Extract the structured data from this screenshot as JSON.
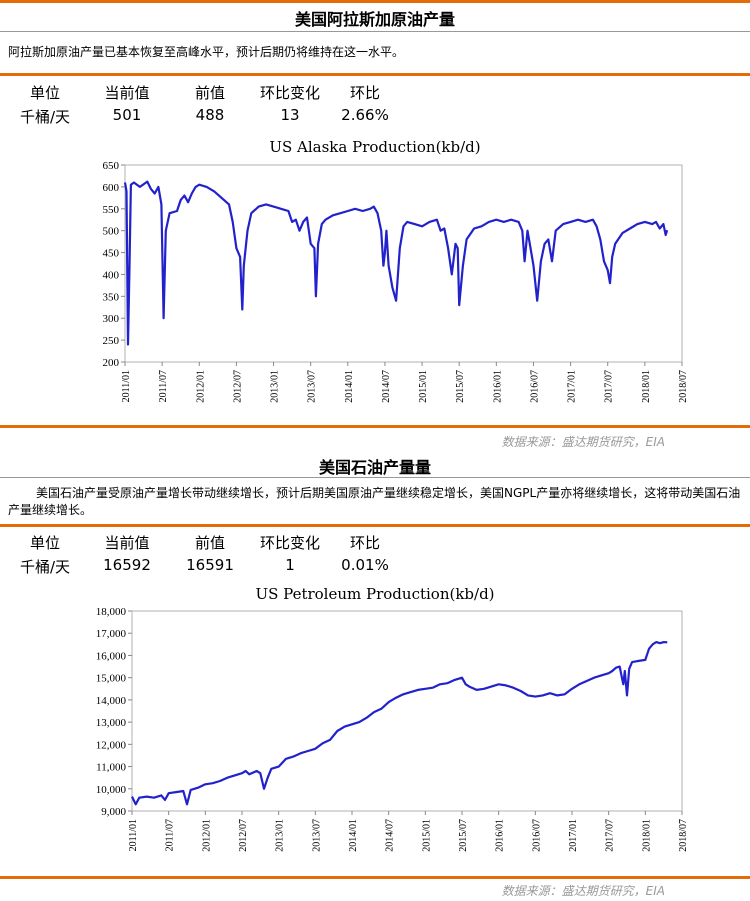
{
  "sections": [
    {
      "title": "美国阿拉斯加原油产量",
      "description": "阿拉斯加原油产量已基本恢复至高峰水平，预计后期仍将维持在这一水平。",
      "table_headers": [
        "单位",
        "当前值",
        "前值",
        "环比变化",
        "环比"
      ],
      "table_values": [
        "千桶/天",
        "501",
        "488",
        "13",
        "2.66%"
      ],
      "chart_title": "US Alaska Production(kb/d)",
      "source": "数据来源：盛达期货研究，EIA"
    },
    {
      "title": "美国石油产量量",
      "description": "美国石油产量受原油产量增长带动继续增长，预计后期美国原油产量继续稳定增长，美国NGPL产量亦将继续增长，这将带动美国石油产量继续增长。",
      "table_headers": [
        "单位",
        "当前值",
        "前值",
        "环比变化",
        "环比"
      ],
      "table_values": [
        "千桶/天",
        "16592",
        "16591",
        "1",
        "0.01%"
      ],
      "chart_title": "US Petroleum Production(kb/d)",
      "source": "数据来源：盛达期货研究，EIA"
    }
  ],
  "chart_data": [
    {
      "type": "line",
      "title": "US Alaska Production(kb/d)",
      "color": "#2222cc",
      "ylim": [
        200,
        650
      ],
      "yticks": [
        200,
        250,
        300,
        350,
        400,
        450,
        500,
        550,
        600,
        650
      ],
      "xticks": [
        "2011/01",
        "2011/07",
        "2012/01",
        "2012/07",
        "2013/01",
        "2013/07",
        "2014/01",
        "2014/07",
        "2015/01",
        "2015/07",
        "2016/01",
        "2016/07",
        "2017/01",
        "2017/07",
        "2018/01",
        "2018/07"
      ],
      "xrange": [
        2011.0,
        2018.5
      ],
      "points": [
        [
          2011.0,
          610
        ],
        [
          2011.02,
          590
        ],
        [
          2011.04,
          240
        ],
        [
          2011.06,
          420
        ],
        [
          2011.08,
          605
        ],
        [
          2011.12,
          610
        ],
        [
          2011.2,
          600
        ],
        [
          2011.3,
          612
        ],
        [
          2011.35,
          595
        ],
        [
          2011.4,
          585
        ],
        [
          2011.45,
          600
        ],
        [
          2011.49,
          560
        ],
        [
          2011.52,
          300
        ],
        [
          2011.55,
          500
        ],
        [
          2011.6,
          540
        ],
        [
          2011.7,
          545
        ],
        [
          2011.75,
          570
        ],
        [
          2011.8,
          580
        ],
        [
          2011.85,
          565
        ],
        [
          2011.9,
          585
        ],
        [
          2011.95,
          600
        ],
        [
          2012.0,
          605
        ],
        [
          2012.1,
          600
        ],
        [
          2012.2,
          590
        ],
        [
          2012.3,
          575
        ],
        [
          2012.4,
          560
        ],
        [
          2012.45,
          520
        ],
        [
          2012.5,
          460
        ],
        [
          2012.55,
          440
        ],
        [
          2012.58,
          320
        ],
        [
          2012.6,
          420
        ],
        [
          2012.65,
          500
        ],
        [
          2012.7,
          540
        ],
        [
          2012.8,
          555
        ],
        [
          2012.9,
          560
        ],
        [
          2013.0,
          555
        ],
        [
          2013.1,
          550
        ],
        [
          2013.2,
          545
        ],
        [
          2013.25,
          520
        ],
        [
          2013.3,
          525
        ],
        [
          2013.35,
          500
        ],
        [
          2013.4,
          520
        ],
        [
          2013.45,
          530
        ],
        [
          2013.5,
          470
        ],
        [
          2013.55,
          460
        ],
        [
          2013.57,
          350
        ],
        [
          2013.6,
          470
        ],
        [
          2013.65,
          515
        ],
        [
          2013.7,
          525
        ],
        [
          2013.8,
          535
        ],
        [
          2013.9,
          540
        ],
        [
          2014.0,
          545
        ],
        [
          2014.1,
          550
        ],
        [
          2014.2,
          545
        ],
        [
          2014.3,
          550
        ],
        [
          2014.35,
          555
        ],
        [
          2014.4,
          540
        ],
        [
          2014.45,
          500
        ],
        [
          2014.48,
          420
        ],
        [
          2014.5,
          450
        ],
        [
          2014.52,
          500
        ],
        [
          2014.55,
          420
        ],
        [
          2014.6,
          370
        ],
        [
          2014.65,
          340
        ],
        [
          2014.7,
          460
        ],
        [
          2014.75,
          510
        ],
        [
          2014.8,
          520
        ],
        [
          2014.9,
          515
        ],
        [
          2015.0,
          510
        ],
        [
          2015.1,
          520
        ],
        [
          2015.2,
          525
        ],
        [
          2015.25,
          500
        ],
        [
          2015.3,
          505
        ],
        [
          2015.35,
          460
        ],
        [
          2015.4,
          400
        ],
        [
          2015.45,
          470
        ],
        [
          2015.48,
          460
        ],
        [
          2015.5,
          330
        ],
        [
          2015.55,
          420
        ],
        [
          2015.6,
          480
        ],
        [
          2015.7,
          505
        ],
        [
          2015.8,
          510
        ],
        [
          2015.9,
          520
        ],
        [
          2016.0,
          525
        ],
        [
          2016.1,
          520
        ],
        [
          2016.2,
          525
        ],
        [
          2016.3,
          520
        ],
        [
          2016.35,
          500
        ],
        [
          2016.38,
          430
        ],
        [
          2016.42,
          500
        ],
        [
          2016.45,
          470
        ],
        [
          2016.5,
          420
        ],
        [
          2016.55,
          340
        ],
        [
          2016.6,
          430
        ],
        [
          2016.65,
          470
        ],
        [
          2016.7,
          480
        ],
        [
          2016.75,
          430
        ],
        [
          2016.8,
          500
        ],
        [
          2016.9,
          515
        ],
        [
          2017.0,
          520
        ],
        [
          2017.1,
          525
        ],
        [
          2017.2,
          520
        ],
        [
          2017.3,
          525
        ],
        [
          2017.35,
          510
        ],
        [
          2017.4,
          480
        ],
        [
          2017.45,
          430
        ],
        [
          2017.5,
          410
        ],
        [
          2017.53,
          380
        ],
        [
          2017.56,
          440
        ],
        [
          2017.6,
          470
        ],
        [
          2017.7,
          495
        ],
        [
          2017.8,
          505
        ],
        [
          2017.9,
          515
        ],
        [
          2018.0,
          520
        ],
        [
          2018.1,
          515
        ],
        [
          2018.15,
          520
        ],
        [
          2018.2,
          505
        ],
        [
          2018.25,
          515
        ],
        [
          2018.28,
          490
        ],
        [
          2018.3,
          501
        ]
      ]
    },
    {
      "type": "line",
      "title": "US Petroleum Production(kb/d)",
      "color": "#2222cc",
      "ylim": [
        9000,
        18000
      ],
      "yticks": [
        9000,
        10000,
        11000,
        12000,
        13000,
        14000,
        15000,
        16000,
        17000,
        18000
      ],
      "ytick_labels": [
        "9,000",
        "10,000",
        "11,000",
        "12,000",
        "13,000",
        "14,000",
        "15,000",
        "16,000",
        "17,000",
        "18,000"
      ],
      "xticks": [
        "2011/01",
        "2011/07",
        "2012/01",
        "2012/07",
        "2013/01",
        "2013/07",
        "2014/01",
        "2014/07",
        "2015/01",
        "2015/07",
        "2016/01",
        "2016/07",
        "2017/01",
        "2017/07",
        "2018/01",
        "2018/07"
      ],
      "xrange": [
        2011.0,
        2018.5
      ],
      "points": [
        [
          2011.0,
          9650
        ],
        [
          2011.05,
          9300
        ],
        [
          2011.1,
          9600
        ],
        [
          2011.2,
          9650
        ],
        [
          2011.3,
          9600
        ],
        [
          2011.4,
          9700
        ],
        [
          2011.45,
          9500
        ],
        [
          2011.5,
          9800
        ],
        [
          2011.6,
          9850
        ],
        [
          2011.7,
          9900
        ],
        [
          2011.75,
          9300
        ],
        [
          2011.8,
          9950
        ],
        [
          2011.9,
          10050
        ],
        [
          2012.0,
          10200
        ],
        [
          2012.1,
          10250
        ],
        [
          2012.2,
          10350
        ],
        [
          2012.3,
          10500
        ],
        [
          2012.4,
          10600
        ],
        [
          2012.5,
          10700
        ],
        [
          2012.55,
          10800
        ],
        [
          2012.6,
          10650
        ],
        [
          2012.7,
          10800
        ],
        [
          2012.75,
          10700
        ],
        [
          2012.8,
          10000
        ],
        [
          2012.85,
          10500
        ],
        [
          2012.9,
          10900
        ],
        [
          2013.0,
          11000
        ],
        [
          2013.1,
          11350
        ],
        [
          2013.2,
          11450
        ],
        [
          2013.3,
          11600
        ],
        [
          2013.4,
          11700
        ],
        [
          2013.5,
          11800
        ],
        [
          2013.6,
          12050
        ],
        [
          2013.7,
          12200
        ],
        [
          2013.8,
          12600
        ],
        [
          2013.9,
          12800
        ],
        [
          2014.0,
          12900
        ],
        [
          2014.1,
          13000
        ],
        [
          2014.2,
          13200
        ],
        [
          2014.3,
          13450
        ],
        [
          2014.4,
          13600
        ],
        [
          2014.5,
          13900
        ],
        [
          2014.6,
          14100
        ],
        [
          2014.7,
          14250
        ],
        [
          2014.8,
          14350
        ],
        [
          2014.9,
          14450
        ],
        [
          2015.0,
          14500
        ],
        [
          2015.1,
          14550
        ],
        [
          2015.2,
          14700
        ],
        [
          2015.3,
          14750
        ],
        [
          2015.4,
          14900
        ],
        [
          2015.5,
          15000
        ],
        [
          2015.55,
          14700
        ],
        [
          2015.6,
          14600
        ],
        [
          2015.7,
          14450
        ],
        [
          2015.8,
          14500
        ],
        [
          2015.9,
          14600
        ],
        [
          2016.0,
          14700
        ],
        [
          2016.1,
          14650
        ],
        [
          2016.2,
          14550
        ],
        [
          2016.3,
          14400
        ],
        [
          2016.4,
          14200
        ],
        [
          2016.5,
          14150
        ],
        [
          2016.6,
          14200
        ],
        [
          2016.7,
          14300
        ],
        [
          2016.8,
          14200
        ],
        [
          2016.9,
          14250
        ],
        [
          2017.0,
          14500
        ],
        [
          2017.1,
          14700
        ],
        [
          2017.2,
          14850
        ],
        [
          2017.3,
          15000
        ],
        [
          2017.4,
          15100
        ],
        [
          2017.5,
          15200
        ],
        [
          2017.55,
          15300
        ],
        [
          2017.6,
          15450
        ],
        [
          2017.65,
          15500
        ],
        [
          2017.68,
          15000
        ],
        [
          2017.7,
          14700
        ],
        [
          2017.72,
          15300
        ],
        [
          2017.75,
          14200
        ],
        [
          2017.78,
          15400
        ],
        [
          2017.82,
          15700
        ],
        [
          2017.9,
          15750
        ],
        [
          2018.0,
          15800
        ],
        [
          2018.05,
          16300
        ],
        [
          2018.1,
          16500
        ],
        [
          2018.15,
          16600
        ],
        [
          2018.2,
          16550
        ],
        [
          2018.25,
          16600
        ],
        [
          2018.3,
          16592
        ]
      ]
    }
  ]
}
